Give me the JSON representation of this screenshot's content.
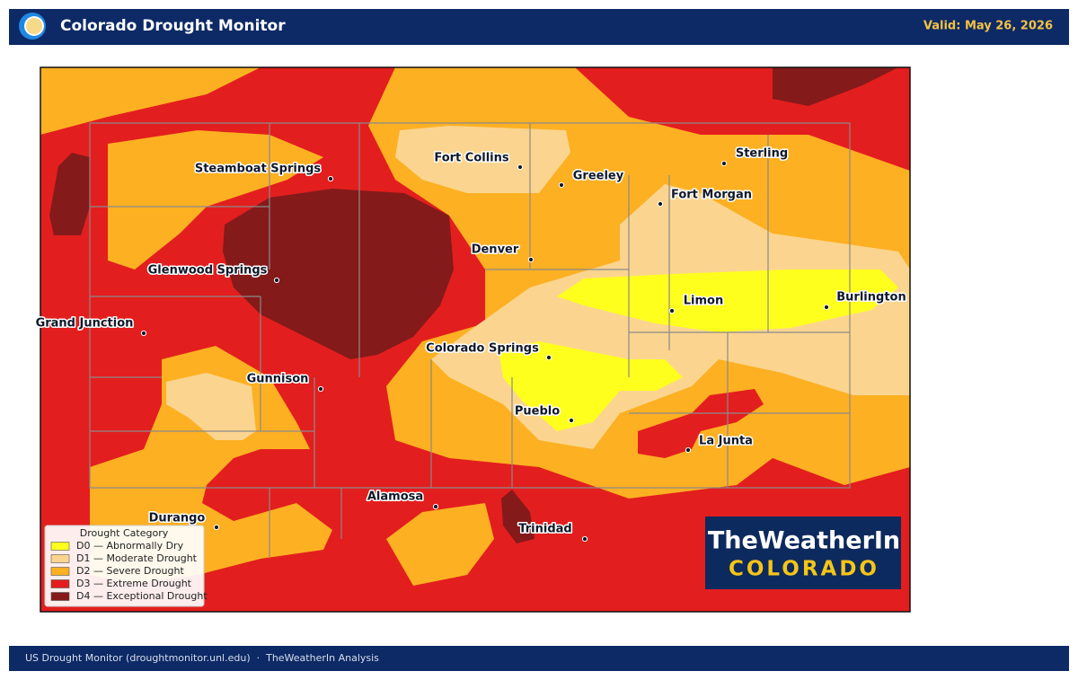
{
  "header": {
    "title": "Colorado Drought Monitor",
    "valid": "Valid: May 26, 2026"
  },
  "cities": [
    "Steamboat Springs",
    "Fort Collins",
    "Greeley",
    "Sterling",
    "Fort Morgan",
    "Denver",
    "Glenwood Springs",
    "Limon",
    "Burlington",
    "Grand Junction",
    "Colorado Springs",
    "Gunnison",
    "Pueblo",
    "La Junta",
    "Alamosa",
    "Durango",
    "Trinidad"
  ],
  "legend": {
    "title": "Drought Category",
    "entries": [
      {
        "label": "D0 — Abnormally Dry",
        "color": "#ffff1e"
      },
      {
        "label": "D1 — Moderate Drought",
        "color": "#fbd58f"
      },
      {
        "label": "D2 — Severe Drought",
        "color": "#fdb022"
      },
      {
        "label": "D3 — Extreme Drought",
        "color": "#e31e1e"
      },
      {
        "label": "D4 — Exceptional Drought",
        "color": "#841a1a"
      }
    ]
  },
  "logo": {
    "line1": "TheWeatherIn",
    "line2": "COLORADO"
  },
  "footer": {
    "text": "US Drought Monitor (droughtmonitor.unl.edu)  ·  TheWeatherIn Analysis"
  }
}
